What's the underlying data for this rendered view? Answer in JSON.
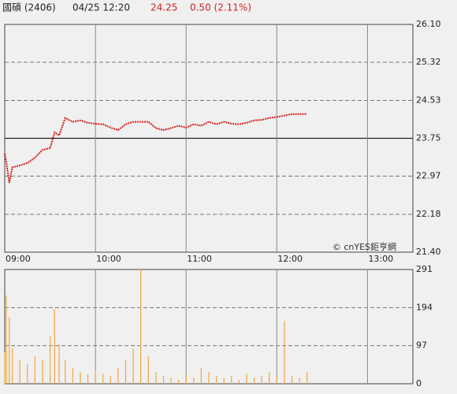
{
  "header": {
    "name": "國碩 (2406)",
    "time": "04/25 12:20",
    "price": "24.25",
    "change": "0.50 (2.11%)"
  },
  "chart_data": [
    {
      "type": "line",
      "watermark": "© cnYES鉅亨網",
      "x": [
        "09:00",
        "09:01",
        "09:03",
        "09:05",
        "09:10",
        "09:15",
        "09:20",
        "09:25",
        "09:30",
        "09:33",
        "09:36",
        "09:40",
        "09:45",
        "09:50",
        "09:55",
        "10:00",
        "10:05",
        "10:10",
        "10:15",
        "10:20",
        "10:25",
        "10:30",
        "10:35",
        "10:40",
        "10:45",
        "10:50",
        "10:55",
        "11:00",
        "11:05",
        "11:10",
        "11:15",
        "11:20",
        "11:25",
        "11:30",
        "11:35",
        "11:40",
        "11:45",
        "11:50",
        "11:55",
        "12:00",
        "12:05",
        "12:10",
        "12:15",
        "12:20"
      ],
      "series": [
        {
          "name": "國碩",
          "color": "#d42020",
          "values": [
            23.43,
            23.27,
            22.83,
            23.15,
            23.19,
            23.24,
            23.35,
            23.51,
            23.55,
            23.87,
            23.81,
            24.17,
            24.09,
            24.12,
            24.07,
            24.05,
            24.04,
            23.97,
            23.92,
            24.04,
            24.09,
            24.09,
            24.09,
            23.96,
            23.92,
            23.96,
            24.01,
            23.97,
            24.04,
            24.01,
            24.09,
            24.04,
            24.09,
            24.05,
            24.04,
            24.07,
            24.12,
            24.13,
            24.17,
            24.19,
            24.22,
            24.25,
            24.25,
            24.25
          ]
        }
      ],
      "xlim": [
        "09:00",
        "13:30"
      ],
      "xticks": [
        "09:00",
        "10:00",
        "11:00",
        "12:00",
        "13:00"
      ],
      "ylim": [
        21.4,
        26.1
      ],
      "yticks": [
        {
          "value": 26.1,
          "label": "26.10"
        },
        25.32,
        24.53,
        23.75,
        22.97,
        22.18,
        {
          "value": 21.4,
          "label": "21.40"
        }
      ],
      "reference_line": 23.75
    },
    {
      "type": "bar",
      "x": [
        "09:00",
        "09:01",
        "09:03",
        "09:05",
        "09:10",
        "09:15",
        "09:20",
        "09:25",
        "09:30",
        "09:33",
        "09:36",
        "09:40",
        "09:45",
        "09:50",
        "09:55",
        "10:00",
        "10:05",
        "10:10",
        "10:15",
        "10:20",
        "10:25",
        "10:30",
        "10:35",
        "10:40",
        "10:45",
        "10:50",
        "10:55",
        "11:00",
        "11:05",
        "11:10",
        "11:15",
        "11:20",
        "11:25",
        "11:30",
        "11:35",
        "11:40",
        "11:45",
        "11:50",
        "11:55",
        "12:00",
        "12:05",
        "12:10",
        "12:15",
        "12:20"
      ],
      "values": [
        80,
        225,
        170,
        90,
        60,
        50,
        70,
        60,
        120,
        190,
        100,
        60,
        40,
        30,
        25,
        35,
        25,
        20,
        40,
        60,
        90,
        291,
        70,
        30,
        20,
        15,
        10,
        25,
        15,
        40,
        30,
        20,
        15,
        20,
        10,
        25,
        15,
        20,
        30,
        15,
        160,
        20,
        15,
        30
      ],
      "color": "#f2a640",
      "xlim": [
        "09:00",
        "13:30"
      ],
      "xticks": [
        "09:00",
        "10:00",
        "11:00",
        "12:00",
        "13:00"
      ],
      "ylim": [
        0,
        291
      ],
      "yticks": [
        0,
        97,
        194,
        291
      ]
    }
  ]
}
